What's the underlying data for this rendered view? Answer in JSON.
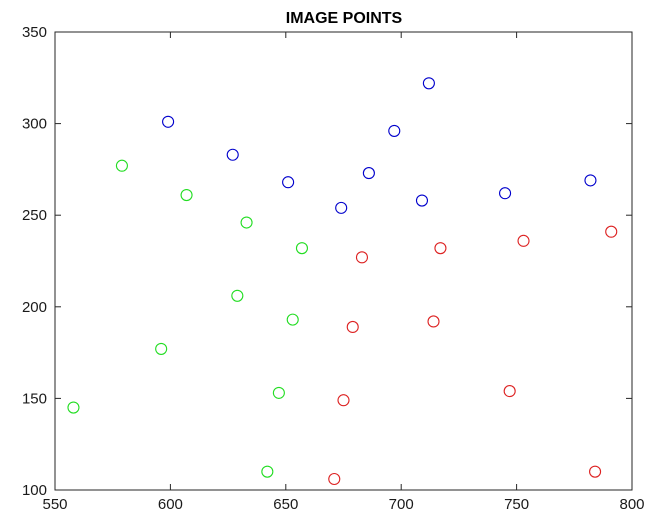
{
  "chart_data": {
    "type": "scatter",
    "title": "IMAGE POINTS",
    "xlabel": "",
    "ylabel": "",
    "xlim": [
      550,
      800
    ],
    "ylim": [
      100,
      350
    ],
    "x_ticks": [
      550,
      600,
      650,
      700,
      750,
      800
    ],
    "y_ticks": [
      100,
      150,
      200,
      250,
      300,
      350
    ],
    "grid": false,
    "marker": "open-circle",
    "series": [
      {
        "color": "#0000cc",
        "points": [
          {
            "x": 599,
            "y": 301
          },
          {
            "x": 627,
            "y": 283
          },
          {
            "x": 651,
            "y": 268
          },
          {
            "x": 674,
            "y": 254
          },
          {
            "x": 686,
            "y": 273
          },
          {
            "x": 697,
            "y": 296
          },
          {
            "x": 709,
            "y": 258
          },
          {
            "x": 712,
            "y": 322
          },
          {
            "x": 745,
            "y": 262
          },
          {
            "x": 782,
            "y": 269
          }
        ]
      },
      {
        "color": "#22dd22",
        "points": [
          {
            "x": 579,
            "y": 277
          },
          {
            "x": 607,
            "y": 261
          },
          {
            "x": 633,
            "y": 246
          },
          {
            "x": 657,
            "y": 232
          },
          {
            "x": 629,
            "y": 206
          },
          {
            "x": 653,
            "y": 193
          },
          {
            "x": 596,
            "y": 177
          },
          {
            "x": 558,
            "y": 145
          },
          {
            "x": 647,
            "y": 153
          },
          {
            "x": 642,
            "y": 110
          }
        ]
      },
      {
        "color": "#dd2222",
        "points": [
          {
            "x": 683,
            "y": 227
          },
          {
            "x": 717,
            "y": 232
          },
          {
            "x": 753,
            "y": 236
          },
          {
            "x": 791,
            "y": 241
          },
          {
            "x": 679,
            "y": 189
          },
          {
            "x": 714,
            "y": 192
          },
          {
            "x": 675,
            "y": 149
          },
          {
            "x": 747,
            "y": 154
          },
          {
            "x": 671,
            "y": 106
          },
          {
            "x": 784,
            "y": 110
          }
        ]
      }
    ]
  }
}
